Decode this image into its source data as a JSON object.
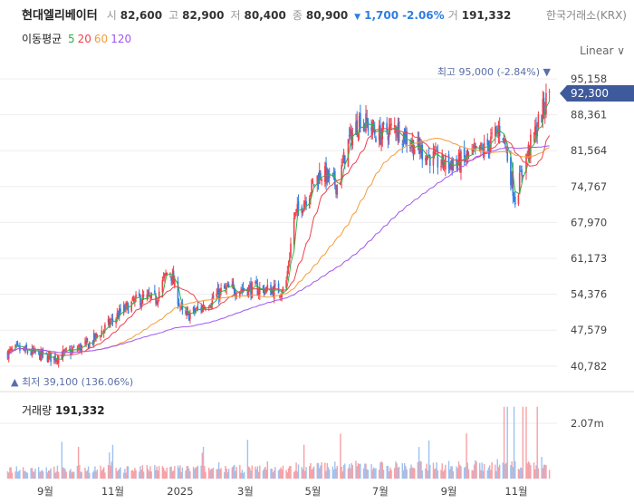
{
  "header": {
    "name": "현대엘리베이터",
    "open_label": "시",
    "open": "82,600",
    "high_label": "고",
    "high": "82,900",
    "low_label": "저",
    "low": "80,400",
    "close_label": "종",
    "close": "80,900",
    "change_arrow": "▼",
    "change": "1,700",
    "change_pct": "-2.06%",
    "volume_label": "거",
    "volume": "191,332",
    "exchange": "한국거래소(KRX)"
  },
  "ma": {
    "label": "이동평균",
    "periods": [
      {
        "p": "5",
        "color": "#2fb24a"
      },
      {
        "p": "20",
        "color": "#f0414b"
      },
      {
        "p": "60",
        "color": "#f39c3c"
      },
      {
        "p": "120",
        "color": "#a056f0"
      }
    ]
  },
  "scale_mode": "Linear ∨",
  "colors": {
    "up": "#f0414b",
    "down": "#2f7de1",
    "current_bg": "#3e5a9c"
  },
  "chart_data": {
    "type": "candlestick",
    "y_ticks": [
      "95,158",
      "88,361",
      "81,564",
      "74,767",
      "67,970",
      "61,173",
      "54,376",
      "47,579",
      "40,782"
    ],
    "ylim": [
      40782,
      95158
    ],
    "x_ticks": [
      {
        "label": "9월",
        "date": "2024-09-01"
      },
      {
        "label": "11월",
        "date": "2024-11-01"
      },
      {
        "label": "2025",
        "date": "2025-01-01"
      },
      {
        "label": "3월",
        "date": "2025-03-01"
      },
      {
        "label": "5월",
        "date": "2025-05-01"
      },
      {
        "label": "7월",
        "date": "2025-07-01"
      },
      {
        "label": "9월",
        "date": "2025-09-01"
      },
      {
        "label": "11월",
        "date": "2025-11-01"
      }
    ],
    "current_price": "92,300",
    "high_note": "최고 95,000 (-2.84%)",
    "low_note": "최저 39,100 (136.06%)",
    "approx_closes": [
      [
        "2024-07-29",
        43200
      ],
      [
        "2024-08-06",
        44000
      ],
      [
        "2024-09-08",
        42300
      ],
      [
        "2024-10-10",
        44900
      ],
      [
        "2024-11-08",
        50900
      ],
      [
        "2024-11-24",
        53500
      ],
      [
        "2024-12-10",
        53500
      ],
      [
        "2024-12-22",
        59500
      ],
      [
        "2025-01-04",
        50000
      ],
      [
        "2025-01-20",
        51800
      ],
      [
        "2025-02-09",
        55200
      ],
      [
        "2025-03-01",
        55500
      ],
      [
        "2025-03-25",
        55200
      ],
      [
        "2025-04-06",
        55200
      ],
      [
        "2025-04-14",
        68900
      ],
      [
        "2025-05-08",
        77500
      ],
      [
        "2025-05-24",
        74900
      ],
      [
        "2025-06-01",
        82600
      ],
      [
        "2025-06-13",
        87800
      ],
      [
        "2025-06-29",
        84400
      ],
      [
        "2025-07-15",
        86100
      ],
      [
        "2025-07-31",
        82600
      ],
      [
        "2025-08-24",
        79200
      ],
      [
        "2025-09-09",
        79200
      ],
      [
        "2025-10-03",
        81800
      ],
      [
        "2025-10-19",
        86100
      ],
      [
        "2025-10-31",
        72400
      ],
      [
        "2025-11-08",
        79200
      ],
      [
        "2025-11-20",
        86100
      ],
      [
        "2025-12-01",
        92900
      ]
    ],
    "volume_panel": {
      "label": "거래량",
      "value": "191,332",
      "tick": "2.07m",
      "max": 2070000
    }
  }
}
